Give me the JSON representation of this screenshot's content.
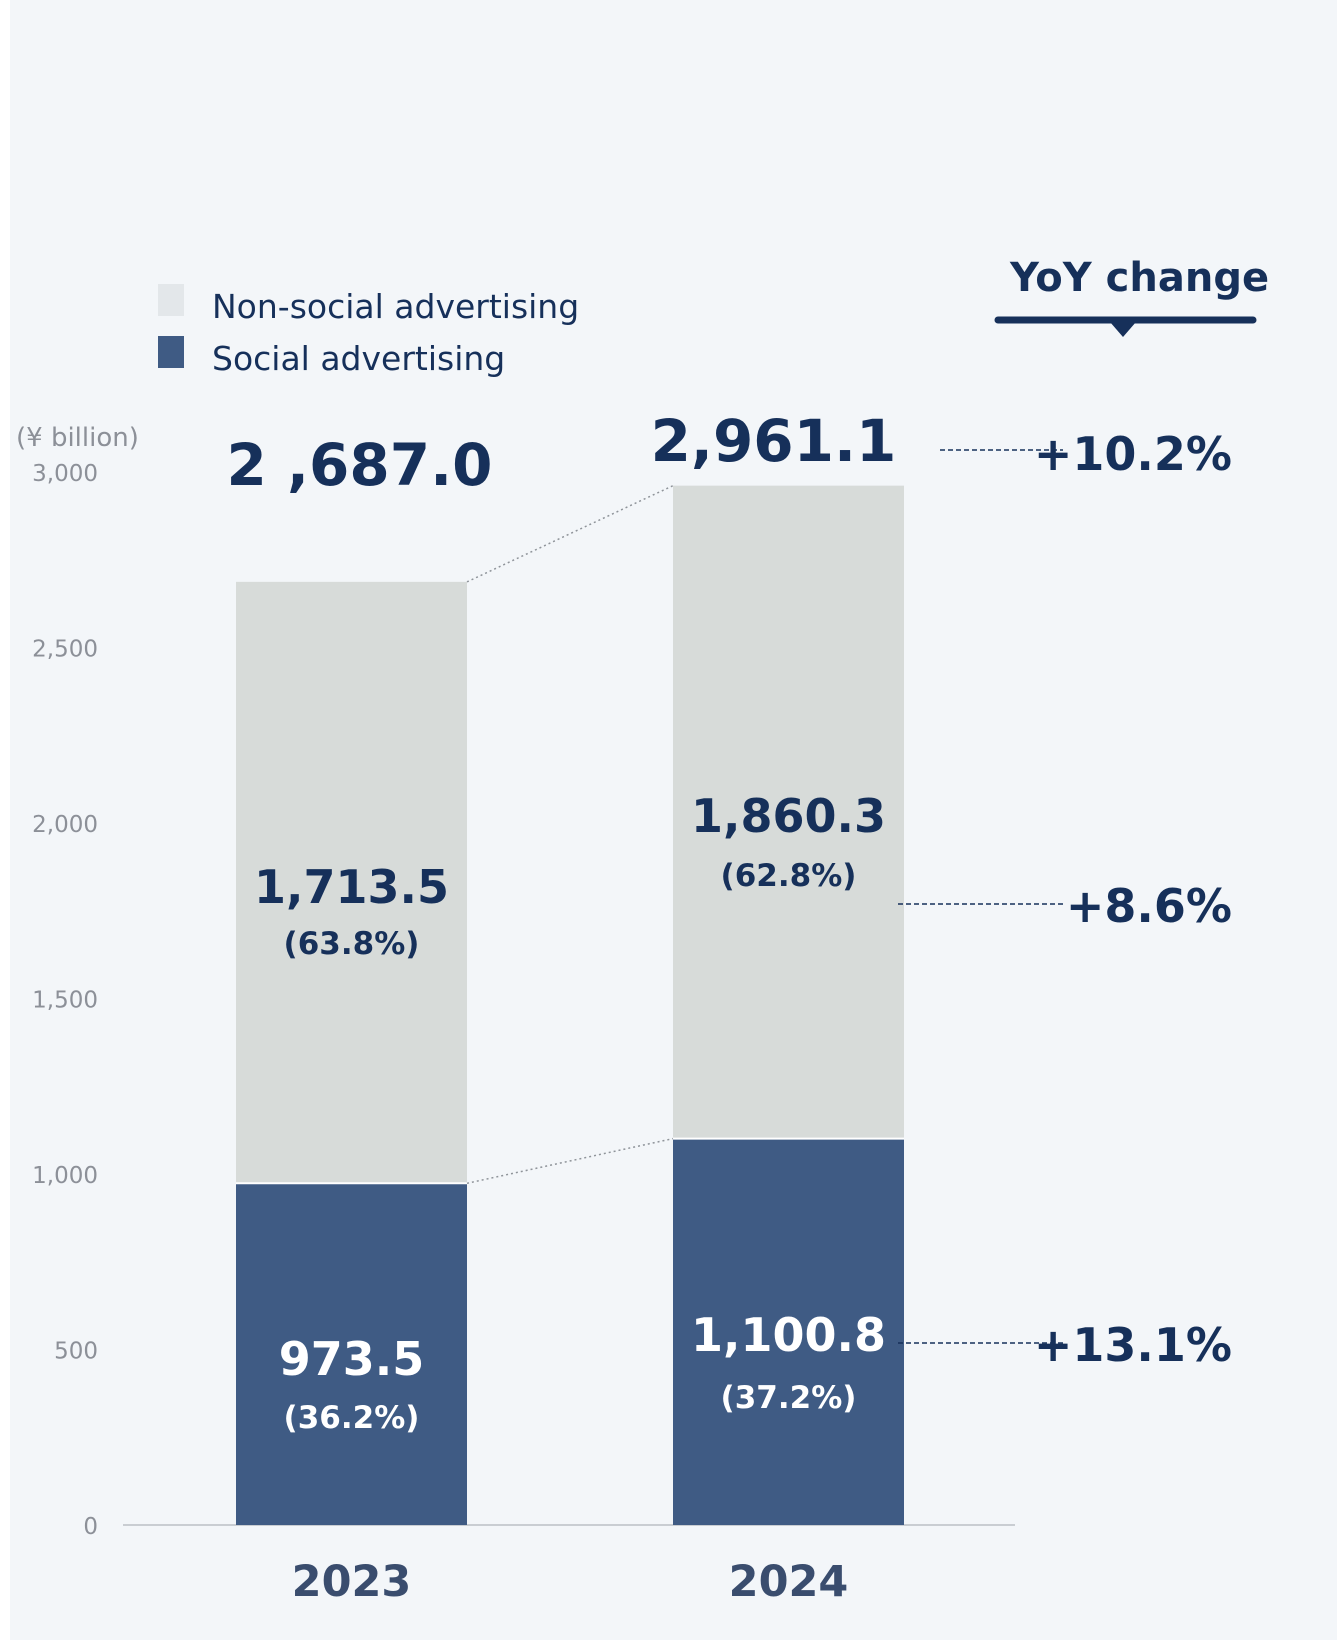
{
  "legend": {
    "non_social": "Non-social advertising",
    "social": "Social advertising"
  },
  "yoy_title": "YoY change",
  "colors": {
    "social": "#3f5b84",
    "non_social": "#d7dbd9",
    "text_dark": "#16305a",
    "axis_text": "#8c9098",
    "background": "#f3f6f9"
  },
  "chart_data": {
    "type": "bar",
    "stacked": true,
    "ylabel": "(¥ billion)",
    "ylim": [
      0,
      3000
    ],
    "yticks": [
      "0",
      "500",
      "1,000",
      "1,500",
      "2,000",
      "2,500",
      "3,000"
    ],
    "ytick_values": [
      0,
      500,
      1000,
      1500,
      2000,
      2500,
      3000
    ],
    "categories": [
      "2023",
      "2024"
    ],
    "series": [
      {
        "name": "Social advertising",
        "values": [
          973.5,
          1100.8
        ],
        "labels": [
          "973.5",
          "1,100.8"
        ],
        "shares": [
          "(36.2%)",
          "(37.2%)"
        ],
        "yoy": "+13.1%"
      },
      {
        "name": "Non-social advertising",
        "values": [
          1713.5,
          1860.3
        ],
        "labels": [
          "1,713.5",
          "1,860.3"
        ],
        "shares": [
          "(63.8%)",
          "(62.8%)"
        ],
        "yoy": "+8.6%"
      }
    ],
    "totals": [
      2687.0,
      2961.1
    ],
    "total_labels": [
      "2 ,687.0",
      "2,961.1"
    ],
    "total_yoy": "+10.2%",
    "legend_position": "top-left",
    "grid": false
  }
}
